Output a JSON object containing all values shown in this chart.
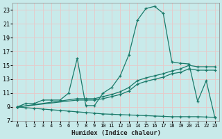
{
  "xlabel": "Humidex (Indice chaleur)",
  "bg_color": "#c8eaea",
  "grid_color": "#d0e8e8",
  "line_color": "#1a7a6a",
  "xlim": [
    -0.5,
    23.5
  ],
  "ylim": [
    7,
    24
  ],
  "yticks": [
    7,
    9,
    11,
    13,
    15,
    17,
    19,
    21,
    23
  ],
  "xticks": [
    0,
    1,
    2,
    3,
    4,
    5,
    6,
    7,
    8,
    9,
    10,
    11,
    12,
    13,
    14,
    15,
    16,
    17,
    18,
    19,
    20,
    21,
    22,
    23
  ],
  "series1_x": [
    0,
    1,
    2,
    3,
    4,
    5,
    6,
    7,
    8,
    9,
    10,
    11,
    12,
    13,
    14,
    15,
    16,
    17,
    18,
    19,
    20,
    21,
    22,
    23
  ],
  "series1_y": [
    9.0,
    9.5,
    9.5,
    10.0,
    10.0,
    10.0,
    11.0,
    16.0,
    9.2,
    9.2,
    11.0,
    11.8,
    13.5,
    16.5,
    21.5,
    23.2,
    23.5,
    22.5,
    15.5,
    15.3,
    15.2,
    9.8,
    12.8,
    7.5
  ],
  "series2_x": [
    0,
    7,
    8,
    9,
    10,
    11,
    12,
    13,
    14,
    15,
    16,
    17,
    18,
    19,
    20,
    21,
    22,
    23
  ],
  "series2_y": [
    9.0,
    10.2,
    10.2,
    10.2,
    10.5,
    10.8,
    11.2,
    11.8,
    12.8,
    13.2,
    13.5,
    13.8,
    14.2,
    14.5,
    15.0,
    14.8,
    14.8,
    14.8
  ],
  "series3_x": [
    0,
    7,
    8,
    9,
    10,
    11,
    12,
    13,
    14,
    15,
    16,
    17,
    18,
    19,
    20,
    21,
    22,
    23
  ],
  "series3_y": [
    9.0,
    10.0,
    10.0,
    10.0,
    10.2,
    10.5,
    10.8,
    11.3,
    12.3,
    12.7,
    13.0,
    13.3,
    13.8,
    14.0,
    14.5,
    14.3,
    14.3,
    14.3
  ],
  "series4_x": [
    0,
    1,
    2,
    3,
    4,
    5,
    6,
    7,
    8,
    9,
    10,
    11,
    12,
    13,
    14,
    15,
    16,
    17,
    18,
    19,
    20,
    21,
    22,
    23
  ],
  "series4_y": [
    9.0,
    8.9,
    8.8,
    8.7,
    8.6,
    8.5,
    8.4,
    8.3,
    8.2,
    8.1,
    8.0,
    7.95,
    7.9,
    7.85,
    7.8,
    7.75,
    7.7,
    7.65,
    7.6,
    7.6,
    7.6,
    7.6,
    7.55,
    7.5
  ]
}
